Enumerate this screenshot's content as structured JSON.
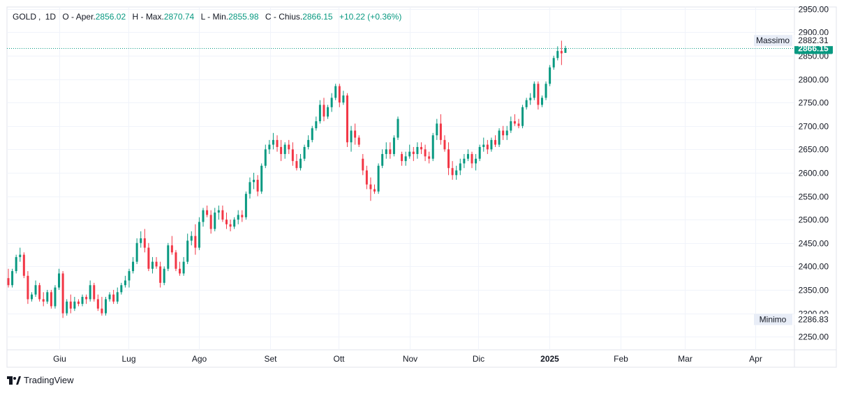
{
  "legend": {
    "symbol": "GOLD",
    "interval": "1D",
    "open_label": "O - Aper.",
    "open": "2856.02",
    "high_label": "H - Max.",
    "high": "2870.74",
    "low_label": "L - Min.",
    "low": "2855.98",
    "close_label": "C - Chius.",
    "close": "2866.15",
    "change": "+10.22 (+0.36%)"
  },
  "branding": {
    "name": "TradingView"
  },
  "colors": {
    "up": "#089981",
    "down": "#f23645",
    "grid": "#f0f3fa",
    "axis_text": "#131722"
  },
  "chart_data": {
    "type": "candlestick",
    "x_labels": [
      {
        "label": "Giu",
        "date": "2024-06-01",
        "bold": false
      },
      {
        "label": "Lug",
        "date": "2024-07-01",
        "bold": false
      },
      {
        "label": "Ago",
        "date": "2024-08-01",
        "bold": false
      },
      {
        "label": "Set",
        "date": "2024-09-01",
        "bold": false
      },
      {
        "label": "Ott",
        "date": "2024-10-01",
        "bold": false
      },
      {
        "label": "Nov",
        "date": "2024-11-01",
        "bold": false
      },
      {
        "label": "Dic",
        "date": "2024-12-01",
        "bold": false
      },
      {
        "label": "2025",
        "date": "2025-01-01",
        "bold": true
      },
      {
        "label": "Feb",
        "date": "2025-02-01",
        "bold": false
      },
      {
        "label": "Mar",
        "date": "2025-03-01",
        "bold": false
      },
      {
        "label": "Apr",
        "date": "2025-04-01",
        "bold": false
      }
    ],
    "x_range": [
      "2024-05-09",
      "2025-04-18"
    ],
    "y_ticks": [
      2250,
      2300,
      2350,
      2400,
      2450,
      2500,
      2550,
      2600,
      2650,
      2700,
      2750,
      2800,
      2850,
      2900,
      2950
    ],
    "ylim": [
      2222,
      2954
    ],
    "y_axis_position": "right",
    "grid": true,
    "last_price": 2866.15,
    "last_price_label": "2866.15",
    "high_marker": {
      "label": "Massimo",
      "value": 2882.31,
      "value_label": "2882.31"
    },
    "low_marker": {
      "label": "Minimo",
      "value": 2286.83,
      "value_label": "2286.83"
    },
    "candles": [
      [
        2375,
        2395,
        2355,
        2360
      ],
      [
        2360,
        2395,
        2355,
        2390
      ],
      [
        2390,
        2425,
        2385,
        2420
      ],
      [
        2420,
        2440,
        2410,
        2425
      ],
      [
        2425,
        2430,
        2375,
        2380
      ],
      [
        2380,
        2390,
        2320,
        2330
      ],
      [
        2330,
        2345,
        2325,
        2340
      ],
      [
        2340,
        2370,
        2335,
        2360
      ],
      [
        2360,
        2365,
        2325,
        2330
      ],
      [
        2330,
        2345,
        2315,
        2325
      ],
      [
        2325,
        2350,
        2320,
        2345
      ],
      [
        2345,
        2350,
        2310,
        2315
      ],
      [
        2315,
        2360,
        2310,
        2355
      ],
      [
        2355,
        2395,
        2350,
        2385
      ],
      [
        2385,
        2390,
        2290,
        2300
      ],
      [
        2300,
        2330,
        2295,
        2325
      ],
      [
        2325,
        2340,
        2300,
        2310
      ],
      [
        2310,
        2335,
        2305,
        2325
      ],
      [
        2325,
        2330,
        2315,
        2320
      ],
      [
        2320,
        2340,
        2315,
        2335
      ],
      [
        2335,
        2340,
        2320,
        2330
      ],
      [
        2330,
        2370,
        2325,
        2360
      ],
      [
        2360,
        2365,
        2325,
        2330
      ],
      [
        2330,
        2340,
        2305,
        2310
      ],
      [
        2310,
        2335,
        2295,
        2300
      ],
      [
        2300,
        2335,
        2295,
        2330
      ],
      [
        2330,
        2345,
        2325,
        2340
      ],
      [
        2340,
        2350,
        2320,
        2325
      ],
      [
        2325,
        2355,
        2320,
        2345
      ],
      [
        2345,
        2365,
        2340,
        2360
      ],
      [
        2360,
        2380,
        2355,
        2370
      ],
      [
        2370,
        2395,
        2355,
        2390
      ],
      [
        2390,
        2420,
        2385,
        2410
      ],
      [
        2410,
        2460,
        2405,
        2450
      ],
      [
        2450,
        2475,
        2440,
        2460
      ],
      [
        2460,
        2480,
        2430,
        2440
      ],
      [
        2440,
        2450,
        2390,
        2395
      ],
      [
        2395,
        2420,
        2385,
        2410
      ],
      [
        2410,
        2420,
        2395,
        2400
      ],
      [
        2400,
        2410,
        2355,
        2365
      ],
      [
        2365,
        2400,
        2360,
        2395
      ],
      [
        2395,
        2450,
        2390,
        2445
      ],
      [
        2445,
        2465,
        2425,
        2430
      ],
      [
        2430,
        2435,
        2390,
        2395
      ],
      [
        2395,
        2410,
        2380,
        2385
      ],
      [
        2385,
        2420,
        2380,
        2410
      ],
      [
        2410,
        2470,
        2405,
        2455
      ],
      [
        2455,
        2475,
        2445,
        2465
      ],
      [
        2465,
        2490,
        2425,
        2440
      ],
      [
        2440,
        2505,
        2435,
        2495
      ],
      [
        2495,
        2525,
        2485,
        2520
      ],
      [
        2520,
        2530,
        2505,
        2510
      ],
      [
        2510,
        2520,
        2470,
        2480
      ],
      [
        2480,
        2525,
        2475,
        2515
      ],
      [
        2515,
        2530,
        2500,
        2520
      ],
      [
        2520,
        2530,
        2495,
        2500
      ],
      [
        2500,
        2515,
        2480,
        2490
      ],
      [
        2490,
        2500,
        2475,
        2485
      ],
      [
        2485,
        2505,
        2480,
        2500
      ],
      [
        2500,
        2520,
        2490,
        2510
      ],
      [
        2510,
        2520,
        2495,
        2505
      ],
      [
        2505,
        2560,
        2500,
        2555
      ],
      [
        2555,
        2590,
        2545,
        2580
      ],
      [
        2580,
        2600,
        2565,
        2585
      ],
      [
        2585,
        2595,
        2550,
        2560
      ],
      [
        2560,
        2620,
        2555,
        2615
      ],
      [
        2615,
        2660,
        2610,
        2650
      ],
      [
        2650,
        2670,
        2640,
        2660
      ],
      [
        2660,
        2685,
        2650,
        2670
      ],
      [
        2670,
        2680,
        2645,
        2655
      ],
      [
        2655,
        2670,
        2625,
        2640
      ],
      [
        2640,
        2665,
        2630,
        2660
      ],
      [
        2660,
        2670,
        2640,
        2650
      ],
      [
        2650,
        2665,
        2615,
        2625
      ],
      [
        2625,
        2640,
        2605,
        2610
      ],
      [
        2610,
        2640,
        2605,
        2630
      ],
      [
        2630,
        2660,
        2625,
        2655
      ],
      [
        2655,
        2680,
        2650,
        2670
      ],
      [
        2670,
        2700,
        2665,
        2695
      ],
      [
        2695,
        2720,
        2690,
        2710
      ],
      [
        2710,
        2755,
        2705,
        2745
      ],
      [
        2745,
        2760,
        2710,
        2720
      ],
      [
        2720,
        2745,
        2715,
        2740
      ],
      [
        2740,
        2770,
        2730,
        2760
      ],
      [
        2760,
        2790,
        2755,
        2785
      ],
      [
        2785,
        2790,
        2740,
        2750
      ],
      [
        2750,
        2775,
        2745,
        2765
      ],
      [
        2765,
        2770,
        2655,
        2665
      ],
      [
        2665,
        2700,
        2645,
        2690
      ],
      [
        2690,
        2705,
        2660,
        2675
      ],
      [
        2675,
        2680,
        2655,
        2660
      ],
      [
        2630,
        2640,
        2595,
        2605
      ],
      [
        2605,
        2615,
        2565,
        2575
      ],
      [
        2575,
        2590,
        2540,
        2565
      ],
      [
        2565,
        2575,
        2555,
        2560
      ],
      [
        2560,
        2620,
        2555,
        2615
      ],
      [
        2615,
        2650,
        2610,
        2640
      ],
      [
        2640,
        2665,
        2630,
        2650
      ],
      [
        2650,
        2665,
        2630,
        2640
      ],
      [
        2640,
        2680,
        2635,
        2675
      ],
      [
        2675,
        2720,
        2670,
        2715
      ],
      [
        2640,
        2645,
        2615,
        2625
      ],
      [
        2625,
        2645,
        2615,
        2635
      ],
      [
        2635,
        2660,
        2630,
        2645
      ],
      [
        2645,
        2655,
        2625,
        2640
      ],
      [
        2640,
        2665,
        2630,
        2655
      ],
      [
        2655,
        2665,
        2640,
        2650
      ],
      [
        2650,
        2660,
        2625,
        2635
      ],
      [
        2635,
        2645,
        2620,
        2630
      ],
      [
        2630,
        2685,
        2625,
        2680
      ],
      [
        2680,
        2715,
        2670,
        2705
      ],
      [
        2705,
        2725,
        2660,
        2670
      ],
      [
        2670,
        2680,
        2645,
        2650
      ],
      [
        2650,
        2665,
        2595,
        2610
      ],
      [
        2610,
        2625,
        2585,
        2595
      ],
      [
        2595,
        2615,
        2585,
        2605
      ],
      [
        2605,
        2630,
        2595,
        2620
      ],
      [
        2620,
        2640,
        2610,
        2630
      ],
      [
        2630,
        2650,
        2625,
        2640
      ],
      [
        2640,
        2645,
        2610,
        2620
      ],
      [
        2620,
        2640,
        2605,
        2630
      ],
      [
        2630,
        2660,
        2625,
        2655
      ],
      [
        2655,
        2675,
        2645,
        2660
      ],
      [
        2660,
        2670,
        2640,
        2650
      ],
      [
        2650,
        2675,
        2645,
        2670
      ],
      [
        2670,
        2680,
        2655,
        2660
      ],
      [
        2660,
        2695,
        2655,
        2690
      ],
      [
        2690,
        2700,
        2670,
        2680
      ],
      [
        2680,
        2700,
        2670,
        2690
      ],
      [
        2690,
        2720,
        2685,
        2710
      ],
      [
        2710,
        2725,
        2700,
        2705
      ],
      [
        2705,
        2715,
        2695,
        2700
      ],
      [
        2700,
        2745,
        2695,
        2740
      ],
      [
        2740,
        2760,
        2735,
        2755
      ],
      [
        2755,
        2770,
        2745,
        2760
      ],
      [
        2760,
        2795,
        2755,
        2790
      ],
      [
        2790,
        2795,
        2735,
        2745
      ],
      [
        2745,
        2765,
        2740,
        2760
      ],
      [
        2760,
        2795,
        2755,
        2790
      ],
      [
        2790,
        2830,
        2785,
        2825
      ],
      [
        2825,
        2850,
        2820,
        2845
      ],
      [
        2845,
        2870,
        2840,
        2860
      ],
      [
        2860,
        2882,
        2830,
        2855
      ],
      [
        2856,
        2871,
        2856,
        2866
      ]
    ]
  }
}
